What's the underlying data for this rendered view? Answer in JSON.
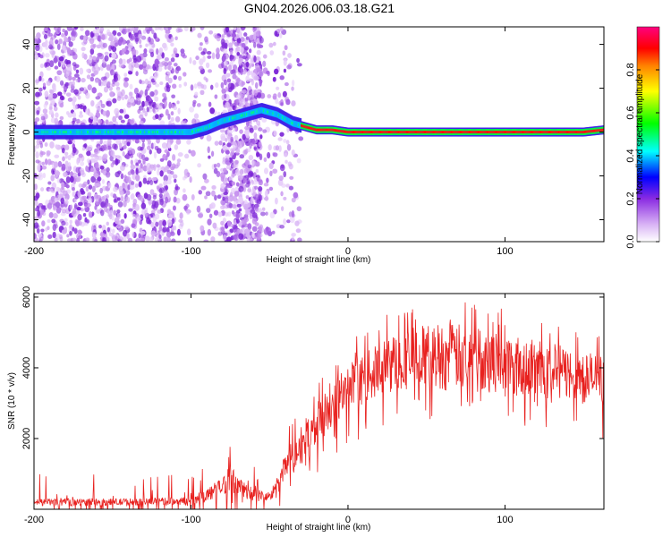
{
  "title": "GN04.2026.006.03.18.G21",
  "chart_data": [
    {
      "type": "heatmap",
      "name": "spectrogram",
      "xlabel": "Height of straight line (km)",
      "ylabel": "Frequency (Hz)",
      "xlim": [
        -200,
        163
      ],
      "ylim": [
        -50,
        48
      ],
      "xticks": [
        -200,
        -100,
        0,
        100
      ],
      "yticks": [
        -40,
        -20,
        0,
        20,
        40
      ],
      "ridge": {
        "x": [
          -200,
          -150,
          -120,
          -100,
          -90,
          -80,
          -70,
          -60,
          -55,
          -50,
          -45,
          -40,
          -35,
          -30,
          -25,
          -20,
          -10,
          0,
          10,
          50,
          100,
          150,
          163
        ],
        "y": [
          0,
          0,
          0,
          0,
          2,
          5,
          7,
          9,
          10,
          9,
          8,
          6,
          4,
          3,
          2,
          1,
          1,
          0,
          0,
          0,
          0,
          0,
          1
        ]
      },
      "colorbar": {
        "label": "Normalized spectral amplitude",
        "ticks": [
          0.0,
          0.2,
          0.4,
          0.6,
          0.8
        ],
        "tick_labels": [
          "0.0",
          "0.2",
          "0.4",
          "0.6",
          "0.8"
        ],
        "colors": [
          "#ffffff",
          "#d9b3f5",
          "#8a2be2",
          "#0000ff",
          "#00ffff",
          "#00ff00",
          "#ffff00",
          "#ff8000",
          "#ff0000",
          "#ff0080"
        ]
      }
    },
    {
      "type": "line",
      "name": "snr",
      "xlabel": "Height of straight line (km)",
      "ylabel": "SNR (10 * v/v)",
      "xlim": [
        -200,
        163
      ],
      "ylim": [
        0,
        6100
      ],
      "xticks": [
        -200,
        -100,
        0,
        100
      ],
      "yticks": [
        2000,
        4000,
        6000
      ],
      "color": "#e8211f",
      "envelope": {
        "x": [
          -200,
          -150,
          -100,
          -90,
          -80,
          -75,
          -70,
          -60,
          -50,
          -45,
          -40,
          -30,
          -20,
          -10,
          0,
          10,
          20,
          30,
          40,
          60,
          80,
          100,
          120,
          140,
          150,
          163
        ],
        "low": [
          100,
          100,
          120,
          200,
          400,
          500,
          400,
          200,
          200,
          400,
          800,
          1200,
          1800,
          2200,
          2600,
          3000,
          3200,
          3300,
          3400,
          3400,
          3400,
          3300,
          3200,
          3100,
          3000,
          2900
        ],
        "high": [
          300,
          300,
          350,
          600,
          900,
          1300,
          900,
          600,
          500,
          900,
          1600,
          2400,
          3000,
          3600,
          4000,
          4400,
          4700,
          5000,
          5200,
          5300,
          5200,
          5000,
          4800,
          4600,
          4500,
          4400
        ]
      }
    }
  ]
}
